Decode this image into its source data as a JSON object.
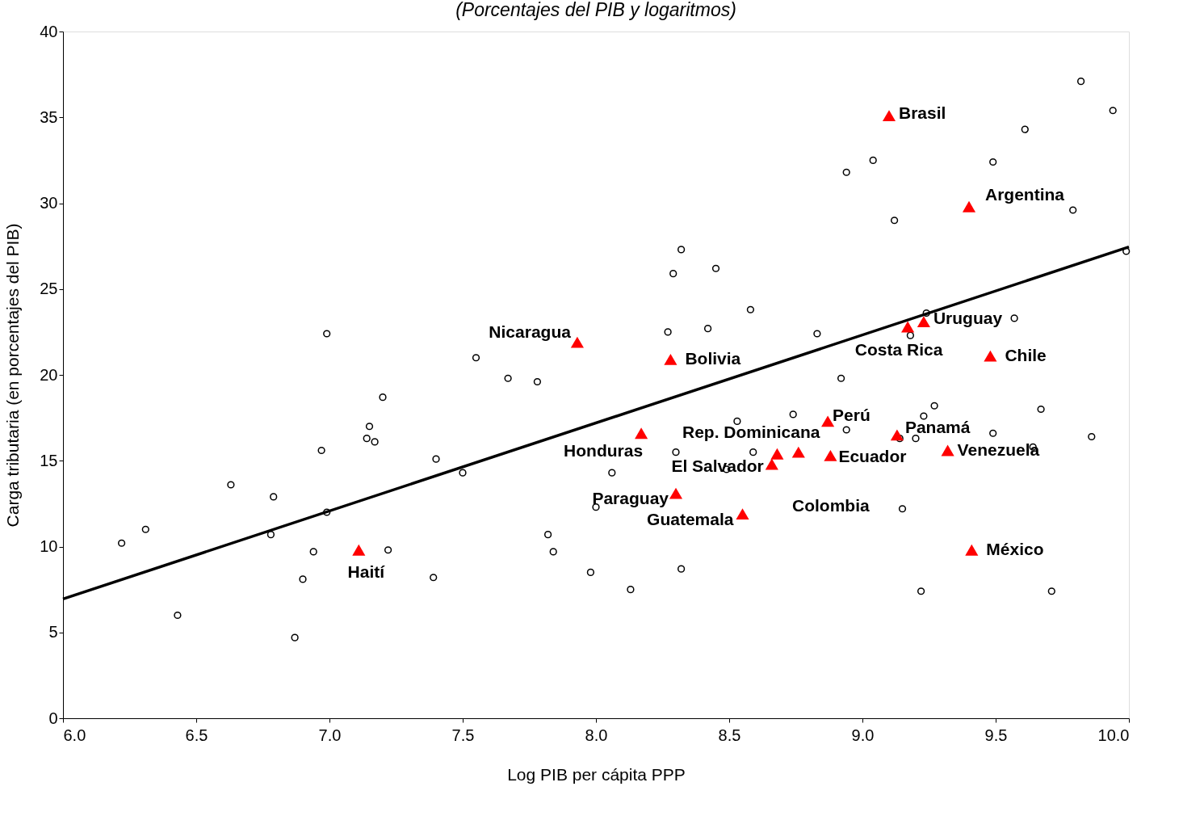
{
  "chart_data": {
    "type": "scatter",
    "subtitle": "(Porcentajes del PIB y logaritmos)",
    "xlabel": "Log PIB per cápita PPP",
    "ylabel": "Carga tributaria (en porcentajes del PIB)",
    "xlim": [
      6.0,
      10.0
    ],
    "xticks": [
      {
        "value": 6,
        "label": "6.0"
      },
      {
        "value": 6.5,
        "label": "6.5"
      },
      {
        "value": 7,
        "label": "7.0"
      },
      {
        "value": 7.5,
        "label": "7.5"
      },
      {
        "value": 8,
        "label": "8.0"
      },
      {
        "value": 8.5,
        "label": "8.5"
      },
      {
        "value": 9,
        "label": "9.0"
      },
      {
        "value": 9.5,
        "label": "9.5"
      },
      {
        "value": 10,
        "label": "10.0"
      }
    ],
    "ylim": [
      0,
      40
    ],
    "yticks": [
      0,
      5,
      10,
      15,
      20,
      25,
      30,
      35,
      40
    ],
    "grid": false,
    "series": [
      {
        "type": "scatter",
        "marker": "circle",
        "color": "#000000",
        "x": [
          6.22,
          6.31,
          6.43,
          6.63,
          6.79,
          6.78,
          6.87,
          6.9,
          6.94,
          6.97,
          6.99,
          6.99,
          7.15,
          7.14,
          7.17,
          7.2,
          7.22,
          7.39,
          7.4,
          7.5,
          7.55,
          7.67,
          7.78,
          7.82,
          7.84,
          7.98,
          8.0,
          8.06,
          8.13,
          8.27,
          8.29,
          8.32,
          8.3,
          8.32,
          8.42,
          8.45,
          8.49,
          8.53,
          8.58,
          8.59,
          8.74,
          8.83,
          8.92,
          8.94,
          8.94,
          9.04,
          9.12,
          9.14,
          9.15,
          9.18,
          9.2,
          9.22,
          9.23,
          9.24,
          9.27,
          9.49,
          9.49,
          9.57,
          9.61,
          9.64,
          9.67,
          9.71,
          9.79,
          9.82,
          9.86,
          9.94,
          9.99
        ],
        "values": [
          10.2,
          11.0,
          6.0,
          13.6,
          12.9,
          10.7,
          4.7,
          8.1,
          9.7,
          15.6,
          12.0,
          22.4,
          17.0,
          16.3,
          16.1,
          18.7,
          9.8,
          8.2,
          15.1,
          14.3,
          21.0,
          19.8,
          19.6,
          10.7,
          9.7,
          8.5,
          12.3,
          14.3,
          7.5,
          22.5,
          25.9,
          27.3,
          15.5,
          8.7,
          22.7,
          26.2,
          14.5,
          17.3,
          23.8,
          15.5,
          17.7,
          22.4,
          19.8,
          16.8,
          31.8,
          32.5,
          29.0,
          16.3,
          12.2,
          22.3,
          16.3,
          7.4,
          17.6,
          23.6,
          18.2,
          32.4,
          16.6,
          23.3,
          34.3,
          15.8,
          18.0,
          7.4,
          29.6,
          37.1,
          16.4,
          35.4,
          27.2
        ]
      },
      {
        "type": "scatter",
        "marker": "triangle",
        "color": "#ff0000",
        "x": [
          9.1,
          9.4,
          9.23,
          9.17,
          9.48,
          7.93,
          8.28,
          8.87,
          9.13,
          9.32,
          8.88,
          8.76,
          8.68,
          8.66,
          8.17,
          8.3,
          8.55,
          9.41,
          7.11
        ],
        "values": [
          35.1,
          29.8,
          23.1,
          22.8,
          21.1,
          21.9,
          20.9,
          17.3,
          16.5,
          15.6,
          15.3,
          15.5,
          15.4,
          14.8,
          16.6,
          13.1,
          11.9,
          9.8,
          9.8
        ]
      },
      {
        "type": "line",
        "color": "#000000",
        "x": [
          6.0,
          10.0
        ],
        "values": [
          6.95,
          27.45
        ]
      }
    ],
    "annotations": [
      {
        "text": "Brasil",
        "x": 9.1,
        "y": 35.1
      },
      {
        "text": "Argentina",
        "x": 9.4,
        "y": 29.8
      },
      {
        "text": "Uruguay",
        "x": 9.23,
        "y": 23.1
      },
      {
        "text": "Costa Rica",
        "x": 9.17,
        "y": 22.8
      },
      {
        "text": "Chile",
        "x": 9.48,
        "y": 21.1
      },
      {
        "text": "Nicaragua",
        "x": 7.93,
        "y": 21.9
      },
      {
        "text": "Bolivia",
        "x": 8.28,
        "y": 20.9
      },
      {
        "text": "Perú",
        "x": 8.87,
        "y": 17.3
      },
      {
        "text": "Panamá",
        "x": 9.13,
        "y": 16.5
      },
      {
        "text": "Venezuela",
        "x": 9.32,
        "y": 15.6
      },
      {
        "text": "Ecuador",
        "x": 8.88,
        "y": 15.3
      },
      {
        "text": "Colombia",
        "x": 8.76,
        "y": 15.5
      },
      {
        "text": "Rep. Dominicana",
        "x": 8.68,
        "y": 15.4
      },
      {
        "text": "El Salvador",
        "x": 8.66,
        "y": 14.8
      },
      {
        "text": "Honduras",
        "x": 8.17,
        "y": 16.6
      },
      {
        "text": "Paraguay",
        "x": 8.3,
        "y": 13.1
      },
      {
        "text": "Guatemala",
        "x": 8.55,
        "y": 11.9
      },
      {
        "text": "México",
        "x": 9.41,
        "y": 9.8
      },
      {
        "text": "Haití",
        "x": 7.11,
        "y": 9.8
      }
    ]
  }
}
